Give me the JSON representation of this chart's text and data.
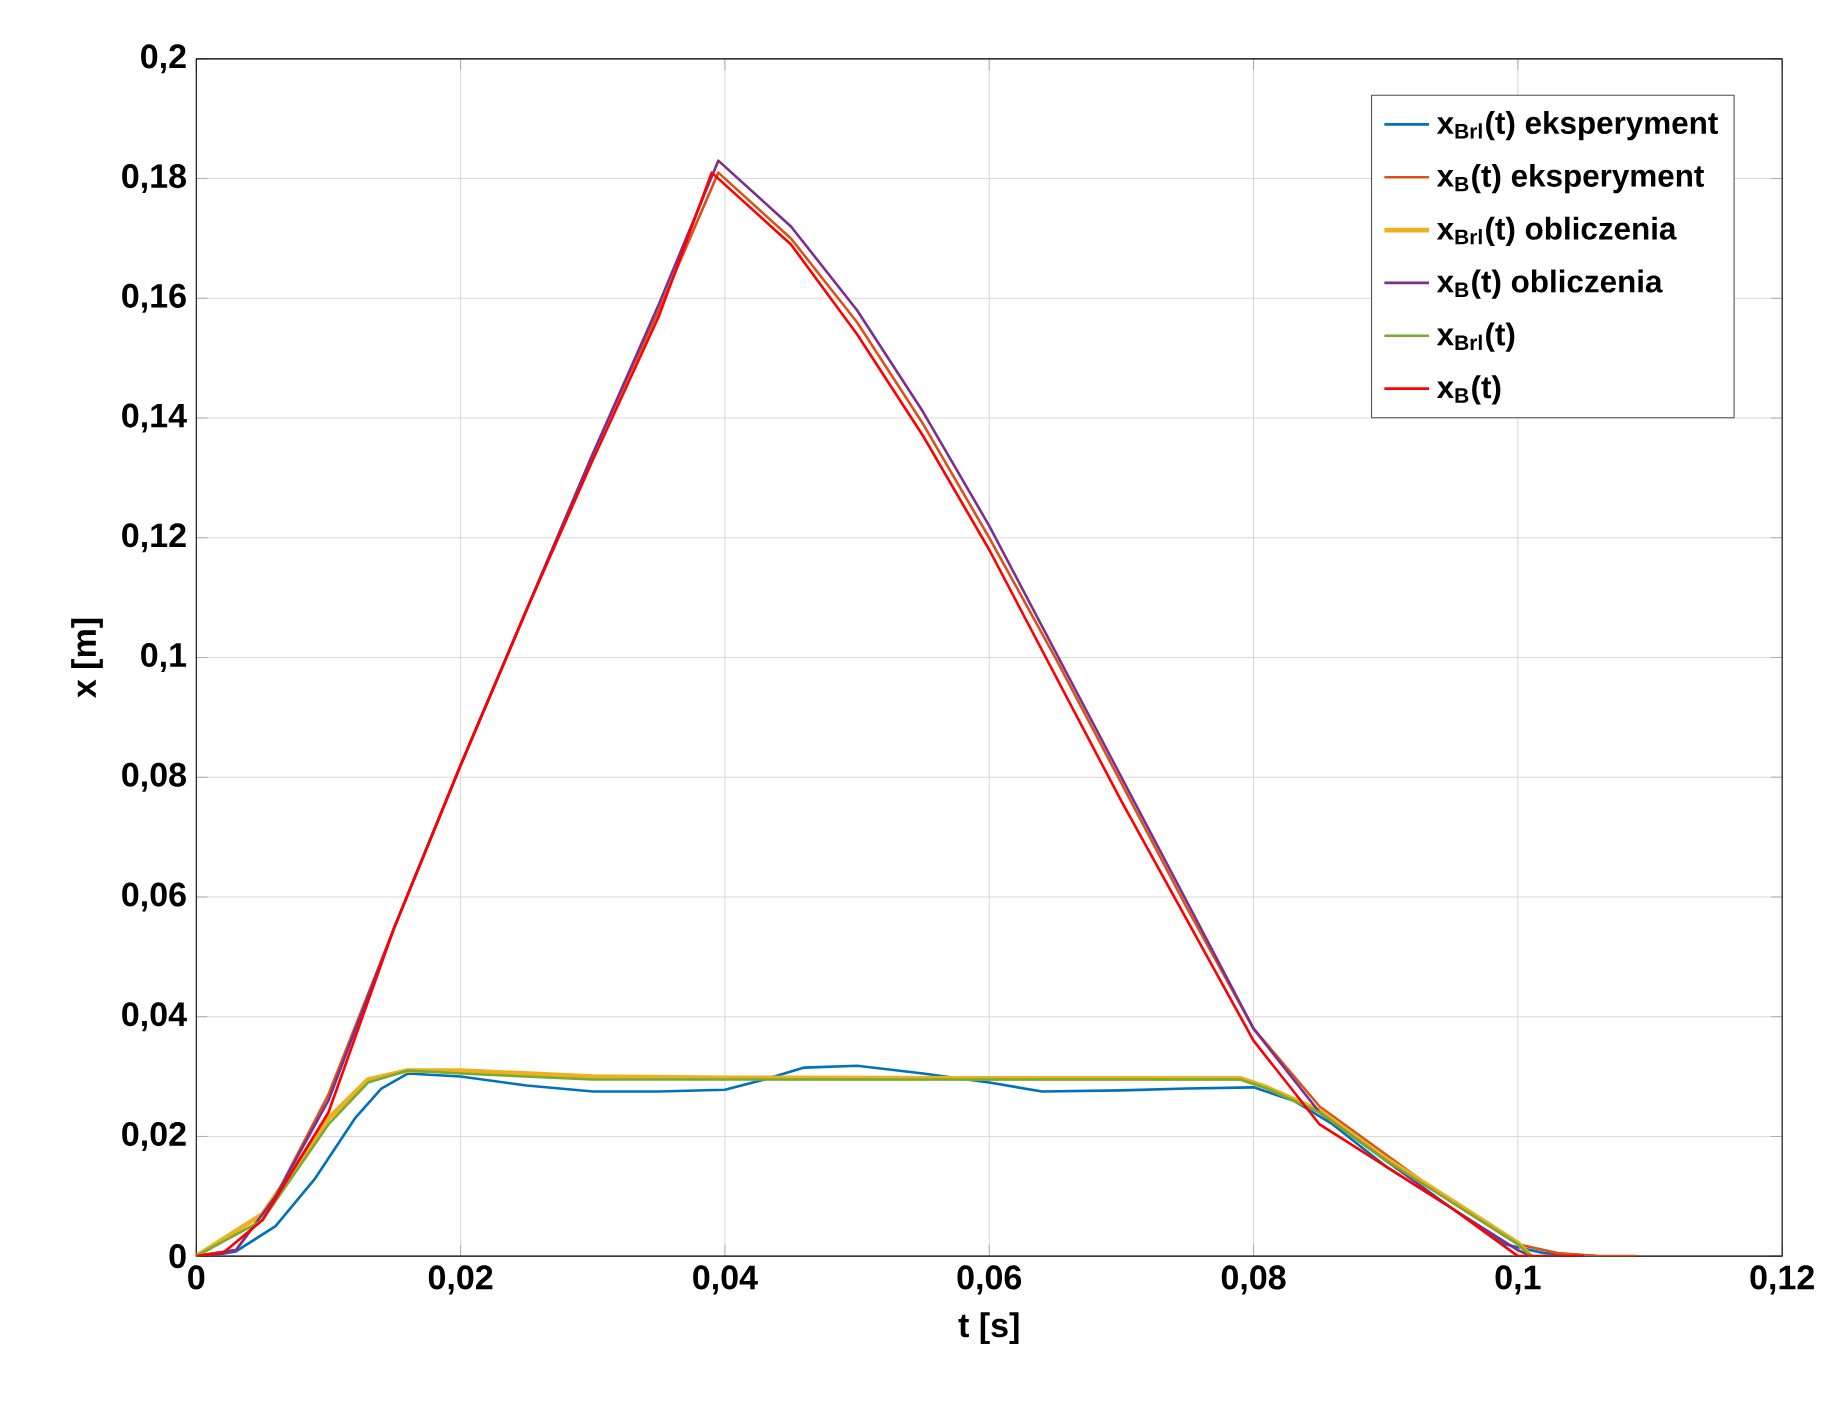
{
  "chart_data": {
    "type": "line",
    "xlabel": "t [s]",
    "ylabel": "x [m]",
    "grid": true,
    "legend": "top right",
    "line_style": "solid",
    "marker": "none",
    "xlim": [
      0,
      0.12
    ],
    "ylim": [
      0,
      0.2
    ],
    "xticks": [
      0,
      {
        "value": 0.02,
        "label": "0,02"
      },
      {
        "value": 0.04,
        "label": "0,04"
      },
      {
        "value": 0.06,
        "label": "0,06"
      },
      {
        "value": 0.08,
        "label": "0,08"
      },
      {
        "value": 0.1,
        "label": "0,1"
      },
      {
        "value": 0.12,
        "label": "0,12"
      }
    ],
    "yticks": [
      0,
      {
        "value": 0.02,
        "label": "0,02"
      },
      {
        "value": 0.04,
        "label": "0,04"
      },
      {
        "value": 0.06,
        "label": "0,06"
      },
      {
        "value": 0.08,
        "label": "0,08"
      },
      {
        "value": 0.1,
        "label": "0,1"
      },
      {
        "value": 0.12,
        "label": "0,12"
      },
      {
        "value": 0.14,
        "label": "0,14"
      },
      {
        "value": 0.16,
        "label": "0,16"
      },
      {
        "value": 0.18,
        "label": "0,18"
      },
      {
        "value": 0.2,
        "label": "0,2"
      }
    ],
    "series": [
      {
        "name": "x$_{Brl}$(t) eksperyment",
        "color": "#0072bd",
        "x": [
          0.001,
          0.003,
          0.006,
          0.009,
          0.012,
          0.014,
          0.016,
          0.02,
          0.025,
          0.03,
          0.035,
          0.04,
          0.043,
          0.046,
          0.05,
          0.055,
          0.06,
          0.064,
          0.07,
          0.075,
          0.08,
          0.083,
          0.086,
          0.09,
          0.095,
          0.099,
          0.102,
          0.106
        ],
        "values": [
          0,
          0.0008,
          0.005,
          0.013,
          0.023,
          0.028,
          0.0305,
          0.03,
          0.0285,
          0.0275,
          0.0275,
          0.0278,
          0.0295,
          0.0315,
          0.0318,
          0.0305,
          0.029,
          0.0275,
          0.0277,
          0.028,
          0.0282,
          0.026,
          0.022,
          0.015,
          0.008,
          0.002,
          0.0005,
          0
        ]
      },
      {
        "name": "x$_{B}$(t) eksperyment",
        "color": "#d95319",
        "x": [
          0,
          0.003,
          0.006,
          0.01,
          0.015,
          0.02,
          0.025,
          0.03,
          0.035,
          0.0395,
          0.045,
          0.05,
          0.055,
          0.06,
          0.065,
          0.07,
          0.075,
          0.08,
          0.085,
          0.09,
          0.095,
          0.1,
          0.103,
          0.106,
          0.109
        ],
        "values": [
          0,
          0.001,
          0.01,
          0.027,
          0.055,
          0.082,
          0.108,
          0.134,
          0.158,
          0.181,
          0.17,
          0.156,
          0.139,
          0.12,
          0.1,
          0.079,
          0.058,
          0.038,
          0.025,
          0.017,
          0.009,
          0.002,
          0.0005,
          0,
          0
        ]
      },
      {
        "name": "x$_{Brl}$(t) obliczenia",
        "color": "#edb120",
        "x": [
          0,
          0.005,
          0.01,
          0.013,
          0.016,
          0.02,
          0.03,
          0.04,
          0.06,
          0.079,
          0.081,
          0.085,
          0.09,
          0.095,
          0.1,
          0.101
        ],
        "values": [
          0,
          0.007,
          0.023,
          0.0295,
          0.031,
          0.031,
          0.03,
          0.0298,
          0.0297,
          0.0297,
          0.0282,
          0.0243,
          0.0163,
          0.0093,
          0.0022,
          0
        ]
      },
      {
        "name": "x$_{B}$(t) obliczenia",
        "color": "#7e2f8e",
        "x": [
          0,
          0.003,
          0.006,
          0.01,
          0.015,
          0.02,
          0.025,
          0.03,
          0.035,
          0.0395,
          0.045,
          0.05,
          0.055,
          0.06,
          0.065,
          0.07,
          0.075,
          0.08,
          0.085,
          0.09,
          0.095,
          0.1,
          0.101
        ],
        "values": [
          0,
          0.001,
          0.01,
          0.026,
          0.055,
          0.082,
          0.108,
          0.134,
          0.159,
          0.183,
          0.172,
          0.158,
          0.141,
          0.122,
          0.101,
          0.08,
          0.059,
          0.038,
          0.024,
          0.016,
          0.008,
          0.001,
          0
        ]
      },
      {
        "name": "x$_{Brl}$(t)",
        "color": "#77ac30",
        "x": [
          0,
          0.005,
          0.01,
          0.013,
          0.016,
          0.02,
          0.03,
          0.04,
          0.06,
          0.079,
          0.081,
          0.085,
          0.09,
          0.095,
          0.1,
          0.101
        ],
        "values": [
          0,
          0.006,
          0.022,
          0.029,
          0.031,
          0.0305,
          0.0295,
          0.0295,
          0.0295,
          0.0295,
          0.028,
          0.024,
          0.016,
          0.009,
          0.002,
          0
        ]
      },
      {
        "name": "x$_{B}$(t)",
        "color": "#ff0000",
        "x": [
          0,
          0.002,
          0.005,
          0.01,
          0.015,
          0.02,
          0.025,
          0.03,
          0.035,
          0.039,
          0.045,
          0.05,
          0.055,
          0.06,
          0.065,
          0.07,
          0.075,
          0.08,
          0.085,
          0.09,
          0.095,
          0.1,
          0.105
        ],
        "values": [
          0,
          0.0005,
          0.006,
          0.024,
          0.055,
          0.082,
          0.108,
          0.133,
          0.157,
          0.181,
          0.169,
          0.154,
          0.137,
          0.118,
          0.097,
          0.076,
          0.056,
          0.036,
          0.022,
          0.015,
          0.008,
          0,
          0
        ]
      }
    ]
  }
}
